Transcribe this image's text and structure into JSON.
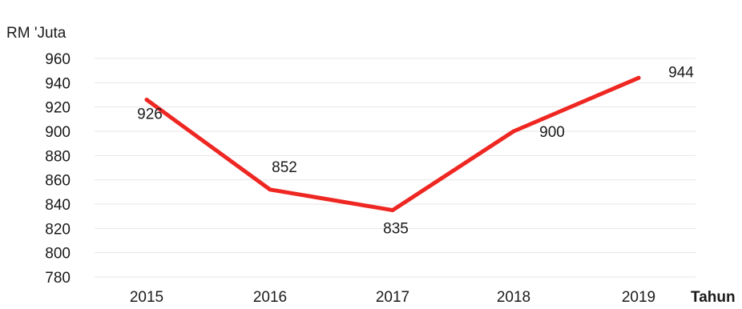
{
  "chart_data": {
    "type": "line",
    "title": "",
    "ylabel": "RM 'Juta",
    "xlabel": "Tahun",
    "categories": [
      "2015",
      "2016",
      "2017",
      "2018",
      "2019"
    ],
    "series": [
      {
        "values": [
          926,
          852,
          835,
          900,
          944
        ]
      }
    ],
    "ylim": [
      780,
      960
    ],
    "yticks": [
      960,
      940,
      920,
      900,
      880,
      860,
      840,
      820,
      800,
      780
    ],
    "grid": true,
    "legend": "none",
    "line_color": "#ee2722"
  }
}
